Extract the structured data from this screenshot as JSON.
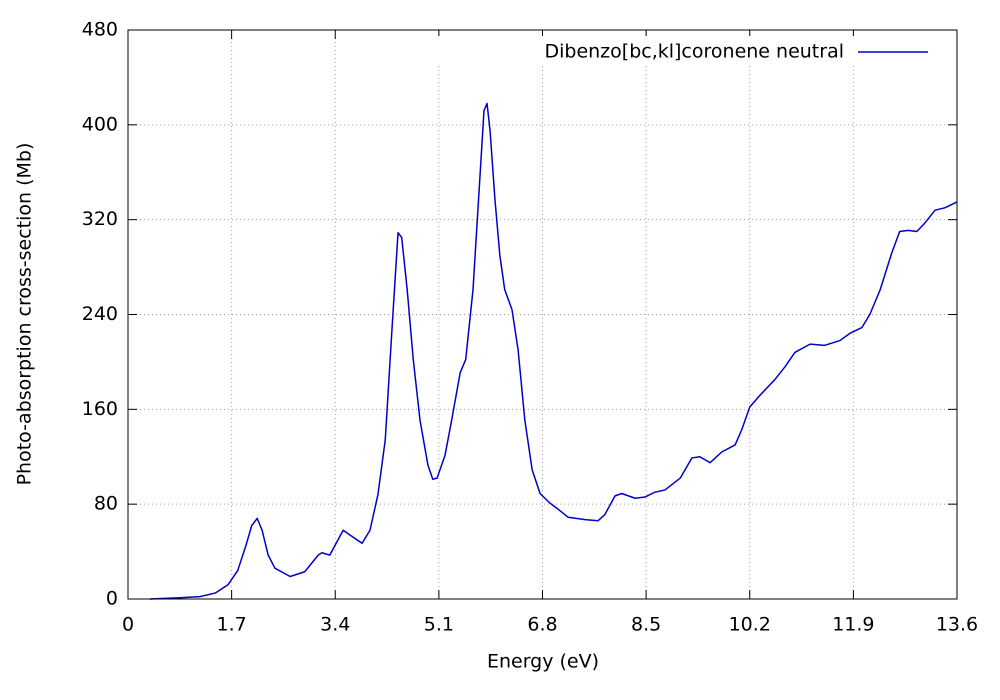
{
  "chart_data": {
    "type": "line",
    "xlabel": "Energy (eV)",
    "ylabel": "Photo-absorption cross-section (Mb)",
    "xlim": [
      0,
      13.6
    ],
    "xticks": [
      0,
      1.7,
      3.4,
      5.1,
      6.8,
      8.5,
      10.2,
      11.9,
      13.6
    ],
    "ylim": [
      0,
      480
    ],
    "yticks": [
      0,
      80,
      160,
      240,
      320,
      400,
      480
    ],
    "grid": true,
    "legend_position": "top right",
    "x": [
      0.36,
      0.85,
      1.18,
      1.43,
      1.64,
      1.8,
      1.94,
      2.03,
      2.12,
      2.2,
      2.3,
      2.41,
      2.66,
      2.9,
      3.12,
      3.18,
      3.31,
      3.53,
      3.64,
      3.84,
      3.97,
      4.1,
      4.22,
      4.33,
      4.43,
      4.49,
      4.58,
      4.68,
      4.79,
      4.92,
      5.0,
      5.07,
      5.2,
      5.31,
      5.45,
      5.54,
      5.66,
      5.77,
      5.84,
      5.89,
      5.94,
      6.02,
      6.1,
      6.18,
      6.3,
      6.4,
      6.51,
      6.63,
      6.76,
      6.92,
      7.05,
      7.22,
      7.5,
      7.71,
      7.82,
      7.99,
      8.1,
      8.32,
      8.48,
      8.64,
      8.81,
      9.06,
      9.25,
      9.38,
      9.55,
      9.74,
      9.96,
      10.07,
      10.2,
      10.37,
      10.61,
      10.78,
      10.94,
      11.19,
      11.43,
      11.68,
      11.84,
      12.04,
      12.17,
      12.34,
      12.53,
      12.66,
      12.8,
      12.94,
      13.07,
      13.24,
      13.4,
      13.6
    ],
    "series": [
      {
        "name": "Dibenzo[bc,kl]coronene neutral",
        "color": "#0000cc",
        "values": [
          0,
          1,
          2,
          5,
          12,
          24,
          46,
          62,
          68,
          58,
          37,
          26,
          19,
          23,
          37,
          39,
          37,
          58,
          54,
          47,
          58,
          88,
          134,
          227,
          309,
          305,
          261,
          202,
          151,
          113,
          101,
          102,
          121,
          151,
          191,
          202,
          261,
          353,
          412,
          418,
          395,
          337,
          290,
          261,
          244,
          210,
          151,
          109,
          89,
          81,
          76,
          69,
          67,
          66,
          71,
          87,
          89,
          85,
          86,
          90,
          92,
          102,
          119,
          120,
          115,
          124,
          130,
          143,
          162,
          172,
          185,
          196,
          208,
          215,
          214,
          218,
          224,
          229,
          240,
          261,
          292,
          310,
          311,
          310,
          317,
          328,
          330,
          335
        ]
      }
    ]
  }
}
